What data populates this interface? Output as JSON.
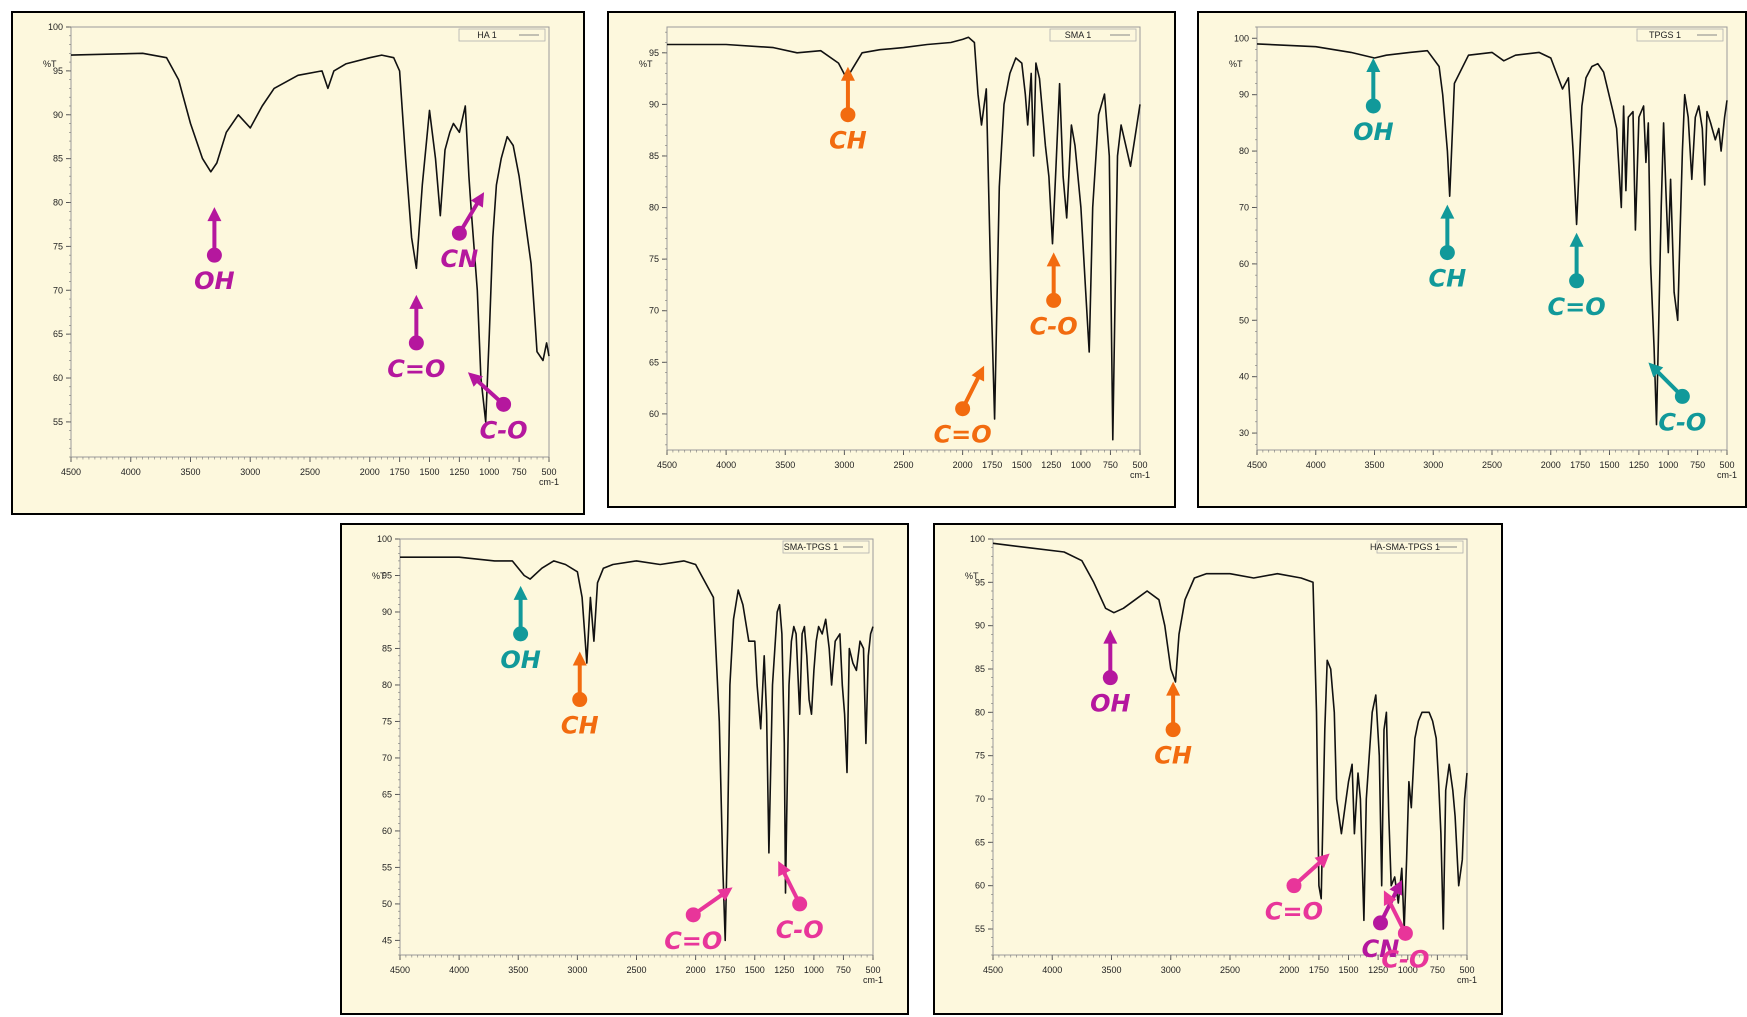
{
  "colors": {
    "magenta": "#b5179e",
    "orange": "#f26b0f",
    "teal": "#11999a",
    "pink": "#e8359a",
    "line": "#111111",
    "panel_bg": "#fdf8dd"
  },
  "chart_data": [
    {
      "type": "line",
      "legend": "HA 1",
      "legend_position": "top-right",
      "ylabel": "%T",
      "xlabel": "cm-1",
      "xlim": [
        4500,
        500
      ],
      "ylim": [
        51,
        100
      ],
      "xticks": [
        4500,
        4000,
        3500,
        3000,
        2500,
        2000,
        1750,
        1500,
        1250,
        1000,
        750,
        500
      ],
      "xtick_labels": [
        "4500",
        "4000",
        "3500",
        "3000",
        "2500",
        "2000",
        "1750",
        "1500",
        "1250",
        "1000",
        "750",
        "500"
      ],
      "yticks": [
        55,
        60,
        65,
        70,
        75,
        80,
        85,
        90,
        95,
        100
      ],
      "ytick_labels": [
        "55",
        "60",
        "65",
        "70",
        "75",
        "80",
        "85",
        "90",
        "95",
        "100"
      ],
      "x": [
        4500,
        4200,
        3900,
        3700,
        3600,
        3500,
        3400,
        3330,
        3280,
        3200,
        3100,
        3000,
        2900,
        2800,
        2600,
        2400,
        2350,
        2300,
        2200,
        2000,
        1900,
        1800,
        1750,
        1700,
        1650,
        1610,
        1560,
        1500,
        1450,
        1410,
        1370,
        1330,
        1300,
        1250,
        1200,
        1170,
        1150,
        1100,
        1070,
        1030,
        1000,
        970,
        940,
        900,
        850,
        800,
        750,
        700,
        650,
        620,
        600,
        550,
        520,
        500
      ],
      "y": [
        96.8,
        96.9,
        97.0,
        96.5,
        94.0,
        89.0,
        85.0,
        83.5,
        84.5,
        88.0,
        90.0,
        88.5,
        91.0,
        93.0,
        94.5,
        95.0,
        93.0,
        95.0,
        95.8,
        96.5,
        96.8,
        96.5,
        95.0,
        85.0,
        76.0,
        72.5,
        82.0,
        90.5,
        85.0,
        78.5,
        86.0,
        88.0,
        89.0,
        88.0,
        91.0,
        83.0,
        79.0,
        70.0,
        60.0,
        55.0,
        65.0,
        76.0,
        82.0,
        85.0,
        87.5,
        86.5,
        83.0,
        78.0,
        73.0,
        67.0,
        63.0,
        62.0,
        64.0,
        62.5
      ],
      "annotations": [
        {
          "label": "OH",
          "color": "magenta",
          "x": 3300,
          "y": 74,
          "dx": 0,
          "dy": -1
        },
        {
          "label": "C=O",
          "color": "magenta",
          "x": 1610,
          "y": 64,
          "dx": 0,
          "dy": -1
        },
        {
          "label": "CN",
          "color": "magenta",
          "x": 1250,
          "y": 76.5,
          "dx": 0.6,
          "dy": -1
        },
        {
          "label": "C-O",
          "color": "magenta",
          "x": 880,
          "y": 57,
          "dx": -1,
          "dy": -0.9
        }
      ]
    },
    {
      "type": "line",
      "legend": "SMA 1",
      "legend_position": "top-right",
      "ylabel": "%T",
      "xlabel": "cm-1",
      "xlim": [
        4500,
        500
      ],
      "ylim": [
        56.5,
        97.5
      ],
      "xticks": [
        4500,
        4000,
        3500,
        3000,
        2500,
        2000,
        1750,
        1500,
        1250,
        1000,
        750,
        500
      ],
      "xtick_labels": [
        "4500",
        "4000",
        "3500",
        "3000",
        "2500",
        "2000",
        "1750",
        "1500",
        "1250",
        "1000",
        "750",
        "500"
      ],
      "yticks": [
        60,
        65,
        70,
        75,
        80,
        85,
        90,
        95
      ],
      "ytick_labels": [
        "60",
        "65",
        "70",
        "75",
        "80",
        "85",
        "90",
        "95"
      ],
      "x": [
        4500,
        4000,
        3600,
        3400,
        3200,
        3050,
        2980,
        2930,
        2850,
        2700,
        2500,
        2300,
        2100,
        2000,
        1950,
        1900,
        1870,
        1840,
        1800,
        1760,
        1730,
        1690,
        1650,
        1600,
        1550,
        1500,
        1470,
        1450,
        1420,
        1400,
        1380,
        1350,
        1300,
        1270,
        1240,
        1210,
        1180,
        1150,
        1120,
        1080,
        1050,
        1000,
        960,
        930,
        900,
        850,
        800,
        760,
        730,
        710,
        690,
        660,
        620,
        580,
        540,
        500
      ],
      "y": [
        95.8,
        95.8,
        95.5,
        95.0,
        95.2,
        94.0,
        92.5,
        93.5,
        95.0,
        95.3,
        95.5,
        95.8,
        96.0,
        96.3,
        96.5,
        96.0,
        91.0,
        88.0,
        91.5,
        72.0,
        59.5,
        82.0,
        90.0,
        93.0,
        94.5,
        94.0,
        91.0,
        88.0,
        93.0,
        85.0,
        94.0,
        92.5,
        86.0,
        83.0,
        76.5,
        84.0,
        92.0,
        83.0,
        79.0,
        88.0,
        86.0,
        80.0,
        72.0,
        66.0,
        80.0,
        89.0,
        91.0,
        85.0,
        57.5,
        72.0,
        85.0,
        88.0,
        86.0,
        84.0,
        87.0,
        90.0
      ],
      "annotations": [
        {
          "label": "CH",
          "color": "orange",
          "x": 2970,
          "y": 89,
          "dx": 0,
          "dy": -1
        },
        {
          "label": "C=O",
          "color": "orange",
          "x": 2000,
          "y": 60.5,
          "dx": 0.5,
          "dy": -1
        },
        {
          "label": "C-O",
          "color": "orange",
          "x": 1230,
          "y": 71,
          "dx": 0,
          "dy": -1
        }
      ]
    },
    {
      "type": "line",
      "legend": "TPGS 1",
      "legend_position": "top-right",
      "ylabel": "%T",
      "xlabel": "cm-1",
      "xlim": [
        4500,
        500
      ],
      "ylim": [
        27,
        102
      ],
      "xticks": [
        4500,
        4000,
        3500,
        3000,
        2500,
        2000,
        1750,
        1500,
        1250,
        1000,
        750,
        500
      ],
      "xtick_labels": [
        "4500",
        "4000",
        "3500",
        "3000",
        "2500",
        "2000",
        "1750",
        "1500",
        "1250",
        "1000",
        "750",
        "500"
      ],
      "yticks": [
        30,
        40,
        50,
        60,
        70,
        80,
        90,
        100
      ],
      "ytick_labels": [
        "30",
        "40",
        "50",
        "60",
        "70",
        "80",
        "90",
        "100"
      ],
      "x": [
        4500,
        4000,
        3700,
        3500,
        3400,
        3200,
        3050,
        2950,
        2920,
        2880,
        2860,
        2820,
        2700,
        2500,
        2400,
        2300,
        2100,
        2000,
        1900,
        1850,
        1810,
        1780,
        1735,
        1700,
        1650,
        1600,
        1550,
        1470,
        1440,
        1400,
        1380,
        1360,
        1340,
        1300,
        1280,
        1250,
        1210,
        1190,
        1170,
        1150,
        1120,
        1100,
        1080,
        1060,
        1040,
        1020,
        1000,
        980,
        950,
        920,
        900,
        880,
        860,
        830,
        800,
        770,
        740,
        710,
        690,
        670,
        640,
        600,
        570,
        550,
        520,
        500
      ],
      "y": [
        99.0,
        98.5,
        97.5,
        96.5,
        97.0,
        97.5,
        97.8,
        95.0,
        90.0,
        80.0,
        72.0,
        92.0,
        97.0,
        97.5,
        96.0,
        97.0,
        97.5,
        96.5,
        91.0,
        93.0,
        80.0,
        67.0,
        88.0,
        93.0,
        95.0,
        95.5,
        94.0,
        87.0,
        84.0,
        70.0,
        88.0,
        73.0,
        86.0,
        87.0,
        66.0,
        86.0,
        88.0,
        78.0,
        85.0,
        60.0,
        45.0,
        31.5,
        50.0,
        70.0,
        85.0,
        73.0,
        62.0,
        75.0,
        55.0,
        50.0,
        65.0,
        80.0,
        90.0,
        86.0,
        75.0,
        86.0,
        88.0,
        84.0,
        74.0,
        87.0,
        85.0,
        82.0,
        84.0,
        80.0,
        86.0,
        89.0
      ],
      "annotations": [
        {
          "label": "OH",
          "color": "teal",
          "x": 3510,
          "y": 88,
          "dx": 0,
          "dy": -1
        },
        {
          "label": "CH",
          "color": "teal",
          "x": 2880,
          "y": 62,
          "dx": 0,
          "dy": -1
        },
        {
          "label": "C=O",
          "color": "teal",
          "x": 1780,
          "y": 57,
          "dx": 0,
          "dy": -1
        },
        {
          "label": "C-O",
          "color": "teal",
          "x": 880,
          "y": 36.5,
          "dx": -1,
          "dy": -1
        }
      ]
    },
    {
      "type": "line",
      "legend": "SMA-TPGS 1",
      "legend_position": "top-right",
      "ylabel": "%T",
      "xlabel": "cm-1",
      "xlim": [
        4500,
        500
      ],
      "ylim": [
        43,
        100
      ],
      "xticks": [
        4500,
        4000,
        3500,
        3000,
        2500,
        2000,
        1750,
        1500,
        1250,
        1000,
        750,
        500
      ],
      "xtick_labels": [
        "4500",
        "4000",
        "3500",
        "3000",
        "2500",
        "2000",
        "1750",
        "1500",
        "1250",
        "1000",
        "750",
        "500"
      ],
      "yticks": [
        45,
        50,
        55,
        60,
        65,
        70,
        75,
        80,
        85,
        90,
        95,
        100
      ],
      "ytick_labels": [
        "45",
        "50",
        "55",
        "60",
        "65",
        "70",
        "75",
        "80",
        "85",
        "90",
        "95",
        "100"
      ],
      "x": [
        4500,
        4000,
        3700,
        3550,
        3450,
        3400,
        3300,
        3200,
        3100,
        3000,
        2960,
        2920,
        2890,
        2860,
        2830,
        2780,
        2700,
        2500,
        2300,
        2100,
        2000,
        1950,
        1850,
        1800,
        1770,
        1750,
        1730,
        1710,
        1680,
        1640,
        1600,
        1550,
        1500,
        1480,
        1450,
        1420,
        1400,
        1380,
        1350,
        1310,
        1290,
        1270,
        1250,
        1240,
        1230,
        1210,
        1190,
        1170,
        1150,
        1120,
        1100,
        1080,
        1060,
        1040,
        1020,
        1000,
        980,
        960,
        930,
        900,
        870,
        850,
        820,
        780,
        760,
        740,
        720,
        700,
        670,
        640,
        610,
        580,
        560,
        540,
        520,
        500
      ],
      "y": [
        97.5,
        97.5,
        97.0,
        97.0,
        95.0,
        94.5,
        96.0,
        97.0,
        96.5,
        95.5,
        92.0,
        83.0,
        92.0,
        86.0,
        94.0,
        96.0,
        96.5,
        97.0,
        96.5,
        97.0,
        96.5,
        95.0,
        92.0,
        75.0,
        55.0,
        45.0,
        60.0,
        80.0,
        89.0,
        93.0,
        91.0,
        86.0,
        86.0,
        80.0,
        74.0,
        84.0,
        76.0,
        57.0,
        80.0,
        90.0,
        91.0,
        87.0,
        72.0,
        51.5,
        62.0,
        80.0,
        86.0,
        88.0,
        87.0,
        76.0,
        87.0,
        88.0,
        84.0,
        78.0,
        76.0,
        82.0,
        86.0,
        88.0,
        87.0,
        89.0,
        85.0,
        80.0,
        86.0,
        87.0,
        80.0,
        76.0,
        68.0,
        85.0,
        83.0,
        82.0,
        86.0,
        85.0,
        72.0,
        84.0,
        87.0,
        88.0
      ],
      "annotations": [
        {
          "label": "OH",
          "color": "teal",
          "x": 3480,
          "y": 87,
          "dx": 0,
          "dy": -1
        },
        {
          "label": "CH",
          "color": "orange",
          "x": 2980,
          "y": 78,
          "dx": 0,
          "dy": -1
        },
        {
          "label": "C=O",
          "color": "pink",
          "x": 2020,
          "y": 48.5,
          "dx": 1,
          "dy": -0.7
        },
        {
          "label": "C-O",
          "color": "pink",
          "x": 1120,
          "y": 50,
          "dx": -0.5,
          "dy": -1
        }
      ]
    },
    {
      "type": "line",
      "legend": "HA-SMA-TPGS 1",
      "legend_position": "top-right",
      "ylabel": "%T",
      "xlabel": "cm-1",
      "xlim": [
        4500,
        500
      ],
      "ylim": [
        52,
        100
      ],
      "xticks": [
        4500,
        4000,
        3500,
        3000,
        2500,
        2000,
        1750,
        1500,
        1250,
        1000,
        750,
        500
      ],
      "xtick_labels": [
        "4500",
        "4000",
        "3500",
        "3000",
        "2500",
        "2000",
        "1750",
        "1500",
        "1250",
        "1000",
        "750",
        "500"
      ],
      "yticks": [
        55,
        60,
        65,
        70,
        75,
        80,
        85,
        90,
        95,
        100
      ],
      "ytick_labels": [
        "55",
        "60",
        "65",
        "70",
        "75",
        "80",
        "85",
        "90",
        "95",
        "100"
      ],
      "x": [
        4500,
        4200,
        3900,
        3750,
        3650,
        3550,
        3480,
        3400,
        3300,
        3200,
        3100,
        3050,
        3000,
        2960,
        2930,
        2880,
        2800,
        2700,
        2500,
        2300,
        2100,
        1900,
        1800,
        1770,
        1750,
        1730,
        1700,
        1680,
        1650,
        1620,
        1600,
        1560,
        1520,
        1500,
        1470,
        1450,
        1420,
        1400,
        1370,
        1350,
        1300,
        1270,
        1240,
        1220,
        1200,
        1180,
        1160,
        1140,
        1110,
        1080,
        1050,
        1030,
        1010,
        990,
        970,
        940,
        910,
        880,
        850,
        820,
        790,
        760,
        740,
        720,
        700,
        680,
        650,
        620,
        600,
        570,
        540,
        520,
        500
      ],
      "y": [
        99.5,
        99.0,
        98.5,
        97.5,
        95.0,
        92.0,
        91.5,
        92.0,
        93.0,
        94.0,
        93.0,
        90.0,
        85.0,
        83.5,
        89.0,
        93.0,
        95.5,
        96.0,
        96.0,
        95.5,
        96.0,
        95.5,
        95.0,
        80.0,
        60.0,
        58.5,
        78.0,
        86.0,
        85.0,
        80.0,
        70.0,
        66.0,
        70.0,
        72.0,
        74.0,
        66.0,
        73.0,
        70.0,
        56.0,
        70.0,
        80.0,
        82.0,
        75.0,
        60.0,
        78.0,
        80.0,
        68.0,
        60.0,
        61.0,
        58.0,
        62.0,
        55.0,
        63.0,
        72.0,
        69.0,
        77.0,
        79.0,
        80.0,
        80.0,
        80.0,
        79.0,
        77.0,
        72.0,
        66.0,
        55.0,
        71.0,
        74.0,
        71.0,
        68.0,
        60.0,
        63.0,
        70.0,
        73.0
      ],
      "annotations": [
        {
          "label": "OH",
          "color": "magenta",
          "x": 3510,
          "y": 84,
          "dx": 0,
          "dy": -1
        },
        {
          "label": "CH",
          "color": "orange",
          "x": 2980,
          "y": 78,
          "dx": 0,
          "dy": -1
        },
        {
          "label": "C=O",
          "color": "pink",
          "x": 1960,
          "y": 60,
          "dx": 1,
          "dy": -0.9
        },
        {
          "label": "CN",
          "color": "magenta",
          "x": 1230,
          "y": 55.7,
          "dx": 0.5,
          "dy": -1
        },
        {
          "label": "C-O",
          "color": "pink",
          "x": 1020,
          "y": 54.5,
          "dx": -0.5,
          "dy": -1
        }
      ]
    }
  ]
}
